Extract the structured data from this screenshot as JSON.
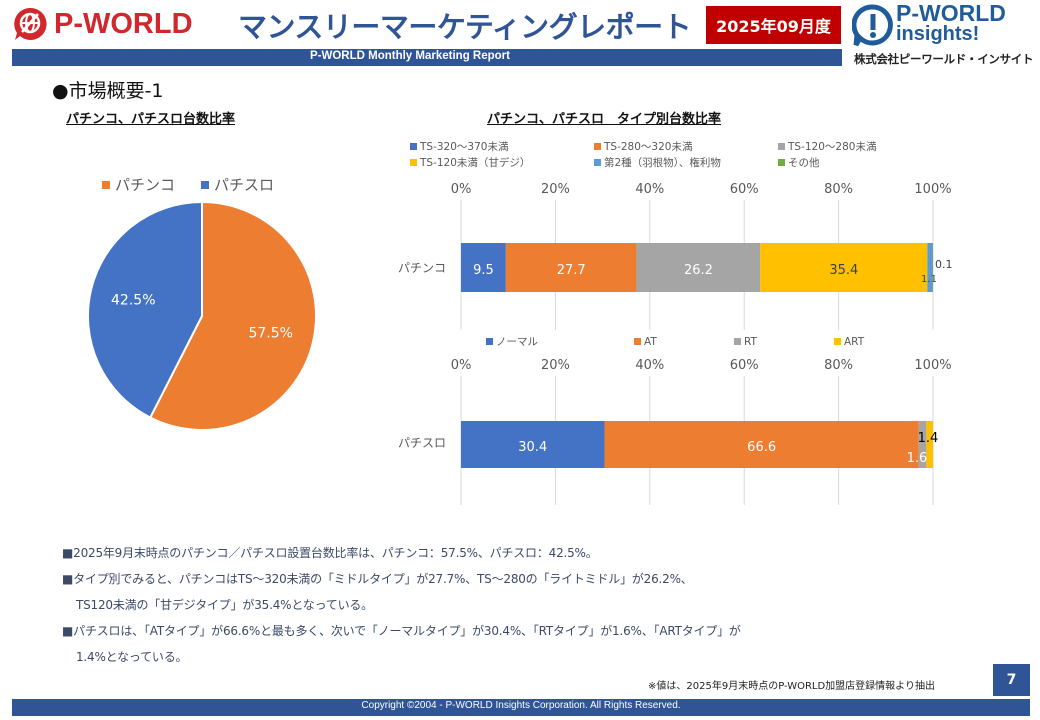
{
  "header": {
    "brand": "P-WORLD",
    "title": "マンスリーマーケティングレポート",
    "subtitle": "P-WORLD Monthly Marketing Report",
    "period": "2025年09月度",
    "right_logo": {
      "line1": "P-WORLD",
      "line2": "insights!",
      "company": "株式会社ピーワールド・インサイト"
    }
  },
  "section_title": "●市場概要-1",
  "colors": {
    "blue": "#4472c4",
    "orange": "#ed7d31",
    "gray": "#a5a5a5",
    "yellow": "#ffc000",
    "lightblue": "#5b9bd5",
    "green": "#70ad47",
    "brand_red": "#d0282c",
    "navy": "#2f5597",
    "badge_red": "#c00000"
  },
  "chart_data": [
    {
      "type": "pie",
      "title": "パチンコ、パチスロ台数比率",
      "legend_position": "top",
      "labels": [
        "パチンコ",
        "パチスロ"
      ],
      "values": [
        57.5,
        42.5
      ],
      "data_labels": [
        "57.5%",
        "42.5%"
      ],
      "colors": [
        "#ed7d31",
        "#4472c4"
      ]
    },
    {
      "type": "bar",
      "orientation": "horizontal-stacked-100",
      "title": "パチンコ、パチスロ　タイプ別台数比率",
      "categories": [
        "パチンコ"
      ],
      "xlim": [
        0,
        100
      ],
      "x_ticks": [
        "0%",
        "20%",
        "40%",
        "60%",
        "80%",
        "100%"
      ],
      "grid": true,
      "legend_position": "top",
      "series": [
        {
          "name": "TS-320〜370未満",
          "values": [
            9.5
          ],
          "color": "#4472c4",
          "label": "9.5"
        },
        {
          "name": "TS-280〜320未満",
          "values": [
            27.7
          ],
          "color": "#ed7d31",
          "label": "27.7"
        },
        {
          "name": "TS-120〜280未満",
          "values": [
            26.2
          ],
          "color": "#a5a5a5",
          "label": "26.2"
        },
        {
          "name": "TS-120未満（甘デジ）",
          "values": [
            35.4
          ],
          "color": "#ffc000",
          "label": "35.4"
        },
        {
          "name": "第2種（羽根物）、権利物",
          "values": [
            1.1
          ],
          "color": "#5b9bd5",
          "label": "1.1"
        },
        {
          "name": "その他",
          "values": [
            0.1
          ],
          "color": "#70ad47",
          "label": "0.1"
        }
      ]
    },
    {
      "type": "bar",
      "orientation": "horizontal-stacked-100",
      "title": "",
      "categories": [
        "パチスロ"
      ],
      "xlim": [
        0,
        100
      ],
      "x_ticks": [
        "0%",
        "20%",
        "40%",
        "60%",
        "80%",
        "100%"
      ],
      "grid": true,
      "legend_position": "top",
      "series": [
        {
          "name": "ノーマル",
          "values": [
            30.4
          ],
          "color": "#4472c4",
          "label": "30.4"
        },
        {
          "name": "AT",
          "values": [
            66.6
          ],
          "color": "#ed7d31",
          "label": "66.6"
        },
        {
          "name": "RT",
          "values": [
            1.6
          ],
          "color": "#a5a5a5",
          "label": "1.6"
        },
        {
          "name": "ART",
          "values": [
            1.4
          ],
          "color": "#ffc000",
          "label": "1.4"
        }
      ]
    }
  ],
  "notes": [
    "■2025年9月末時点のパチンコ／パチスロ設置台数比率は、パチンコ：57.5%、パチスロ：42.5%。",
    "■タイプ別でみると、パチンコはTS〜320未満の「ミドルタイプ」が27.7%、TS〜280の「ライトミドル」が26.2%、",
    "TS120未満の「甘デジタイプ」が35.4%となっている。",
    "■パチスロは、「ATタイプ」が66.6%と最も多く、次いで「ノーマルタイプ」が30.4%、「RTタイプ」が1.6%、「ARTタイプ」が",
    "1.4%となっている。"
  ],
  "footnote": "※値は、2025年9月末時点のP-WORLD加盟店登録情報より抽出",
  "page_number": "7",
  "copyright": "Copyright ©2004 -  P-WORLD Insights Corporation. All Rights Reserved."
}
